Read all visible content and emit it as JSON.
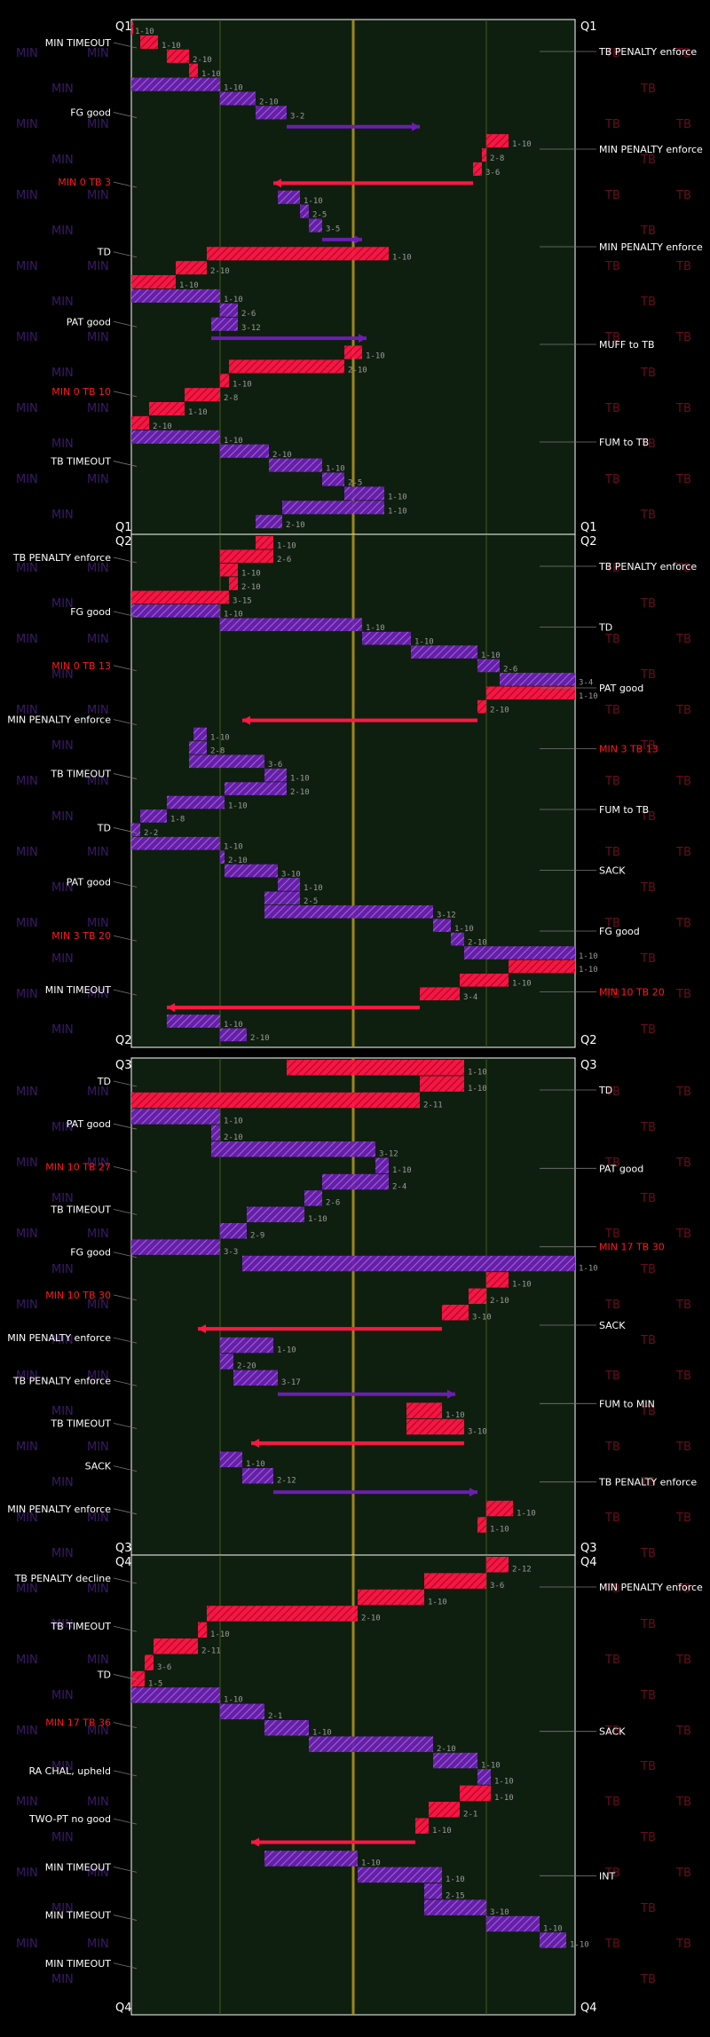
{
  "chart_data": {
    "type": "football_drive_chart",
    "teams": {
      "away": {
        "name": "MIN",
        "color": "#6a1fb0"
      },
      "home": {
        "name": "TB",
        "color": "#ff1744"
      }
    },
    "quarters": [
      {
        "label": "Q1",
        "left_events": [
          {
            "text": "MIN TIMEOUT",
            "color": "#ffffff"
          },
          {
            "text": "FG good",
            "color": "#ffffff"
          },
          {
            "text": "MIN 0 TB 3",
            "color": "#ff1a1a"
          },
          {
            "text": "TD",
            "color": "#ffffff"
          },
          {
            "text": "PAT good",
            "color": "#ffffff"
          },
          {
            "text": "MIN 0 TB 10",
            "color": "#ff1a1a"
          },
          {
            "text": "TB TIMEOUT",
            "color": "#ffffff"
          }
        ],
        "right_events": [
          {
            "text": "TB PENALTY enforce",
            "color": "#ffffff"
          },
          {
            "text": "MIN PENALTY enforce",
            "color": "#ffffff"
          },
          {
            "text": "MIN PENALTY enforce",
            "color": "#ffffff"
          },
          {
            "text": "MUFF to TB",
            "color": "#ffffff"
          },
          {
            "text": "FUM to TB",
            "color": "#ffffff"
          }
        ]
      },
      {
        "label": "Q2",
        "left_events": [
          {
            "text": "TB PENALTY enforce",
            "color": "#ffffff"
          },
          {
            "text": "FG good",
            "color": "#ffffff"
          },
          {
            "text": "MIN 0 TB 13",
            "color": "#ff1a1a"
          },
          {
            "text": "MIN PENALTY enforce",
            "color": "#ffffff"
          },
          {
            "text": "TB TIMEOUT",
            "color": "#ffffff"
          },
          {
            "text": "TD",
            "color": "#ffffff"
          },
          {
            "text": "PAT good",
            "color": "#ffffff"
          },
          {
            "text": "MIN 3 TB 20",
            "color": "#ff1a1a"
          },
          {
            "text": "MIN TIMEOUT",
            "color": "#ffffff"
          }
        ],
        "right_events": [
          {
            "text": "TB PENALTY enforce",
            "color": "#ffffff"
          },
          {
            "text": "TD",
            "color": "#ffffff"
          },
          {
            "text": "PAT good",
            "color": "#ffffff"
          },
          {
            "text": "MIN 3 TB 13",
            "color": "#ff1a1a"
          },
          {
            "text": "FUM to TB",
            "color": "#ffffff"
          },
          {
            "text": "SACK",
            "color": "#ffffff"
          },
          {
            "text": "FG good",
            "color": "#ffffff"
          },
          {
            "text": "MIN 10 TB 20",
            "color": "#ff1a1a"
          }
        ]
      },
      {
        "label": "Q3",
        "left_events": [
          {
            "text": "TD",
            "color": "#ffffff"
          },
          {
            "text": "PAT good",
            "color": "#ffffff"
          },
          {
            "text": "MIN 10 TB 27",
            "color": "#ff1a1a"
          },
          {
            "text": "TB TIMEOUT",
            "color": "#ffffff"
          },
          {
            "text": "FG good",
            "color": "#ffffff"
          },
          {
            "text": "MIN 10 TB 30",
            "color": "#ff1a1a"
          },
          {
            "text": "MIN PENALTY enforce",
            "color": "#ffffff"
          },
          {
            "text": "TB PENALTY enforce",
            "color": "#ffffff"
          },
          {
            "text": "TB TIMEOUT",
            "color": "#ffffff"
          },
          {
            "text": "SACK",
            "color": "#ffffff"
          },
          {
            "text": "MIN PENALTY enforce",
            "color": "#ffffff"
          }
        ],
        "right_events": [
          {
            "text": "TD",
            "color": "#ffffff"
          },
          {
            "text": "PAT good",
            "color": "#ffffff"
          },
          {
            "text": "MIN 17 TB 30",
            "color": "#ff1a1a"
          },
          {
            "text": "SACK",
            "color": "#ffffff"
          },
          {
            "text": "FUM to MIN",
            "color": "#ffffff"
          },
          {
            "text": "TB PENALTY enforce",
            "color": "#ffffff"
          }
        ]
      },
      {
        "label": "Q4",
        "left_events": [
          {
            "text": "TB PENALTY decline",
            "color": "#ffffff"
          },
          {
            "text": "TB TIMEOUT",
            "color": "#ffffff"
          },
          {
            "text": "TD",
            "color": "#ffffff"
          },
          {
            "text": "MIN 17 TB 36",
            "color": "#ff1a1a"
          },
          {
            "text": "RA CHAL, upheld",
            "color": "#ffffff"
          },
          {
            "text": "TWO-PT no good",
            "color": "#ffffff"
          },
          {
            "text": "MIN TIMEOUT",
            "color": "#ffffff"
          },
          {
            "text": "MIN TIMEOUT",
            "color": "#ffffff"
          },
          {
            "text": "MIN TIMEOUT",
            "color": "#ffffff"
          }
        ],
        "right_events": [
          {
            "text": "MIN PENALTY enforce",
            "color": "#ffffff"
          },
          {
            "text": "SACK",
            "color": "#ffffff"
          },
          {
            "text": "INT",
            "color": "#ffffff"
          }
        ]
      }
    ],
    "drives": [
      {
        "team": "TB",
        "q": 1,
        "plays": [
          [
            0,
            0,
            "1-10"
          ],
          [
            2,
            6,
            "1-10"
          ],
          [
            8,
            13,
            "2-10"
          ],
          [
            13,
            15,
            "1-10"
          ]
        ]
      },
      {
        "team": "MIN",
        "q": 1,
        "plays": [
          [
            0,
            20,
            "1-10"
          ],
          [
            20,
            28,
            "2-10"
          ],
          [
            28,
            35,
            "3-2"
          ],
          [
            35,
            65,
            ""
          ]
        ]
      },
      {
        "team": "TB",
        "q": 1,
        "plays": [
          [
            80,
            85,
            "1-10"
          ],
          [
            79,
            80,
            "2-8"
          ],
          [
            77,
            79,
            "3-6"
          ],
          [
            77,
            32,
            ""
          ]
        ]
      },
      {
        "team": "MIN",
        "q": 1,
        "plays": [
          [
            33,
            38,
            "1-10"
          ],
          [
            38,
            40,
            "2-5"
          ],
          [
            40,
            43,
            "3-5"
          ],
          [
            43,
            52,
            ""
          ]
        ]
      },
      {
        "team": "TB",
        "q": 1,
        "plays": [
          [
            58,
            17,
            "1-10"
          ],
          [
            17,
            10,
            "2-10"
          ],
          [
            10,
            0,
            "1-10"
          ]
        ]
      },
      {
        "team": "MIN",
        "q": 1,
        "plays": [
          [
            0,
            20,
            "1-10"
          ],
          [
            20,
            24,
            "2-6"
          ],
          [
            24,
            18,
            "3-12"
          ],
          [
            18,
            53,
            ""
          ]
        ]
      },
      {
        "team": "TB",
        "q": 1,
        "plays": [
          [
            52,
            48,
            "1-10"
          ],
          [
            48,
            22,
            "2-10"
          ],
          [
            22,
            20,
            "1-10"
          ],
          [
            20,
            12,
            "2-8"
          ],
          [
            12,
            4,
            "1-10"
          ],
          [
            4,
            0,
            "2-10"
          ]
        ]
      },
      {
        "team": "MIN",
        "q": 1,
        "plays": [
          [
            0,
            20,
            "1-10"
          ],
          [
            20,
            31,
            "2-10"
          ],
          [
            31,
            43,
            "1-10"
          ],
          [
            43,
            48,
            "2-5"
          ],
          [
            48,
            57,
            "1-10"
          ],
          [
            57,
            34,
            "1-10"
          ],
          [
            34,
            28,
            "2-10"
          ]
        ]
      },
      {
        "team": "TB",
        "q": 2,
        "plays": [
          [
            28,
            32,
            "1-10"
          ],
          [
            32,
            20,
            "2-6"
          ],
          [
            20,
            24,
            "1-10"
          ],
          [
            24,
            22,
            "2-10"
          ],
          [
            22,
            0,
            "3-15"
          ]
        ]
      },
      {
        "team": "MIN",
        "q": 2,
        "plays": [
          [
            0,
            20,
            "1-10"
          ],
          [
            20,
            52,
            "1-10"
          ],
          [
            52,
            63,
            "1-10"
          ],
          [
            63,
            78,
            "1-10"
          ],
          [
            78,
            83,
            "2-6"
          ],
          [
            83,
            100,
            "3-4"
          ]
        ]
      },
      {
        "team": "TB",
        "q": 2,
        "plays": [
          [
            100,
            80,
            "1-10"
          ],
          [
            80,
            78,
            "2-10"
          ],
          [
            78,
            25,
            ""
          ]
        ]
      },
      {
        "team": "MIN",
        "q": 2,
        "plays": [
          [
            14,
            17,
            "1-10"
          ],
          [
            17,
            13,
            "2-8"
          ],
          [
            13,
            30,
            "3-6"
          ],
          [
            30,
            35,
            "1-10"
          ],
          [
            35,
            21,
            "2-10"
          ],
          [
            21,
            8,
            "1-10"
          ],
          [
            8,
            2,
            "1-8"
          ],
          [
            2,
            0,
            "2-2"
          ]
        ]
      },
      {
        "team": "MIN",
        "q": 2,
        "plays": [
          [
            0,
            20,
            "1-10"
          ],
          [
            20,
            21,
            "2-10"
          ],
          [
            21,
            33,
            "3-10"
          ],
          [
            33,
            38,
            "1-10"
          ],
          [
            38,
            30,
            "2-5"
          ],
          [
            30,
            68,
            "3-12"
          ],
          [
            68,
            72,
            "1-10"
          ],
          [
            72,
            75,
            "2-10"
          ],
          [
            75,
            100,
            "1-10"
          ]
        ]
      },
      {
        "team": "TB",
        "q": 2,
        "plays": [
          [
            100,
            85,
            "1-10"
          ],
          [
            85,
            74,
            "1-10"
          ],
          [
            74,
            65,
            "3-4"
          ],
          [
            65,
            8,
            ""
          ]
        ]
      },
      {
        "team": "MIN",
        "q": 2,
        "plays": [
          [
            8,
            20,
            "1-10"
          ],
          [
            20,
            26,
            "2-10"
          ]
        ]
      },
      {
        "team": "TB",
        "q": 3,
        "plays": [
          [
            35,
            75,
            "1-10"
          ],
          [
            75,
            65,
            "1-10"
          ],
          [
            65,
            0,
            "2-11"
          ]
        ]
      },
      {
        "team": "MIN",
        "q": 3,
        "plays": [
          [
            0,
            20,
            "1-10"
          ],
          [
            20,
            18,
            "2-10"
          ],
          [
            18,
            55,
            "3-12"
          ],
          [
            55,
            58,
            "1-10"
          ],
          [
            58,
            43,
            "2-4"
          ],
          [
            43,
            39,
            "2-6"
          ],
          [
            39,
            26,
            "1-10"
          ],
          [
            26,
            20,
            "2-9"
          ],
          [
            20,
            0,
            "3-3"
          ]
        ]
      },
      {
        "team": "MIN",
        "q": 3,
        "plays": [
          [
            25,
            100,
            "1-10"
          ]
        ]
      },
      {
        "team": "TB",
        "q": 3,
        "plays": [
          [
            85,
            80,
            "1-10"
          ],
          [
            80,
            76,
            "2-10"
          ],
          [
            76,
            70,
            "3-10"
          ],
          [
            70,
            15,
            ""
          ]
        ]
      },
      {
        "team": "MIN",
        "q": 3,
        "plays": [
          [
            32,
            20,
            "1-10"
          ],
          [
            20,
            23,
            "2-20"
          ],
          [
            23,
            33,
            "3-17"
          ],
          [
            33,
            73,
            ""
          ]
        ]
      },
      {
        "team": "TB",
        "q": 3,
        "plays": [
          [
            70,
            62,
            "1-10"
          ],
          [
            62,
            75,
            "3-10"
          ],
          [
            75,
            27,
            ""
          ]
        ]
      },
      {
        "team": "MIN",
        "q": 3,
        "plays": [
          [
            20,
            25,
            "1-10"
          ],
          [
            25,
            32,
            "2-12"
          ],
          [
            32,
            78,
            ""
          ]
        ]
      },
      {
        "team": "TB",
        "q": 3,
        "plays": [
          [
            86,
            80,
            "1-10"
          ],
          [
            80,
            78,
            "1-10"
          ]
        ]
      },
      {
        "team": "TB",
        "q": 4,
        "plays": [
          [
            85,
            80,
            "2-12"
          ],
          [
            80,
            66,
            "3-6"
          ],
          [
            66,
            51,
            "1-10"
          ],
          [
            51,
            17,
            "2-10"
          ],
          [
            17,
            15,
            "1-10"
          ],
          [
            15,
            5,
            "2-11"
          ],
          [
            5,
            3,
            "3-6"
          ],
          [
            3,
            0,
            "1-5"
          ]
        ]
      },
      {
        "team": "MIN",
        "q": 4,
        "plays": [
          [
            0,
            20,
            "1-10"
          ],
          [
            20,
            30,
            "2-1"
          ],
          [
            30,
            40,
            "1-10"
          ],
          [
            40,
            68,
            "2-10"
          ],
          [
            68,
            78,
            "1-10"
          ],
          [
            78,
            81,
            "1-10"
          ]
        ]
      },
      {
        "team": "TB",
        "q": 4,
        "plays": [
          [
            81,
            74,
            "1-10"
          ],
          [
            74,
            67,
            "2-1"
          ],
          [
            67,
            64,
            "1-10"
          ],
          [
            64,
            27,
            ""
          ]
        ]
      },
      {
        "team": "MIN",
        "q": 4,
        "plays": [
          [
            30,
            51,
            "1-10"
          ],
          [
            51,
            70,
            "1-10"
          ],
          [
            70,
            66,
            "2-15"
          ],
          [
            66,
            80,
            "3-10"
          ],
          [
            80,
            92,
            "1-10"
          ],
          [
            92,
            98,
            "1-10"
          ]
        ]
      }
    ],
    "field_lines": [
      20,
      50,
      80
    ],
    "endzone_labels": {
      "left_team": "MIN",
      "right_team": "TB"
    }
  }
}
